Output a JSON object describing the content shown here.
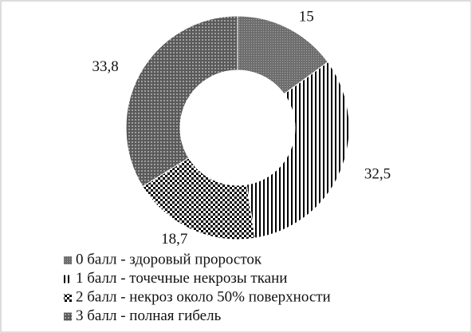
{
  "chart_data": {
    "type": "donut",
    "categories": [
      "0 балл - здоровый проросток",
      "1 балл - точечные некрозы ткани",
      "2 балл - некроз около 50% поверхности",
      "3 балл - полная гибель"
    ],
    "values": [
      15,
      32.5,
      18.7,
      33.8
    ],
    "value_labels": [
      "15",
      "32,5",
      "18,7",
      "33,8"
    ],
    "colors": [
      "#6e6e6e",
      "#ffffff",
      "#ffffff",
      "#5a5a5a"
    ],
    "legend": "bottom"
  }
}
